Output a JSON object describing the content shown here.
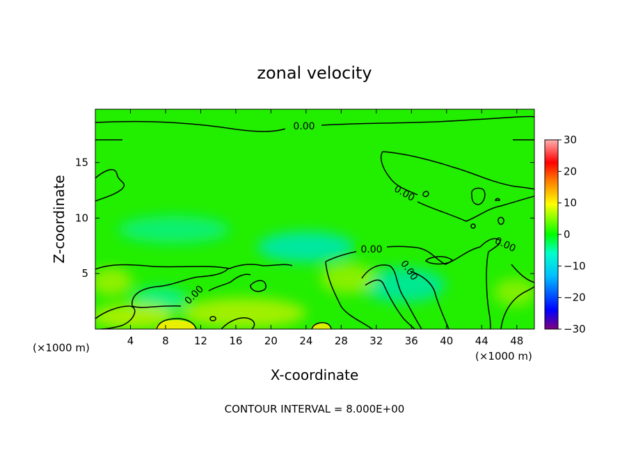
{
  "chart_data": {
    "type": "heatmap",
    "title": "zonal velocity",
    "xlabel": "X-coordinate",
    "ylabel": "Z-coordinate",
    "x_unit": "(×1000 m)",
    "x_unit_right": "(×1000 m)",
    "xlim": [
      0,
      50
    ],
    "ylim": [
      0,
      19.8
    ],
    "x_ticks": [
      4,
      8,
      12,
      16,
      20,
      24,
      28,
      32,
      36,
      40,
      44,
      48
    ],
    "x_tick_labels": [
      "4",
      "8",
      "12",
      "16",
      "20",
      "24",
      "28",
      "32",
      "36",
      "40",
      "44",
      "48"
    ],
    "y_ticks": [
      5,
      10,
      15
    ],
    "y_tick_labels": [
      "5",
      "10",
      "15"
    ],
    "colorbar": {
      "min": -30,
      "max": 30,
      "ticks": [
        30,
        20,
        10,
        0,
        -10,
        -20,
        -30
      ],
      "tick_labels": [
        "30",
        "20",
        "10",
        "0",
        "−10",
        "−20",
        "−30"
      ],
      "colors": [
        "#800080",
        "#0000ff",
        "#00bfff",
        "#00ffcc",
        "#00ff00",
        "#ffff00",
        "#ff8000",
        "#ff0000",
        "#ffb0b0"
      ]
    },
    "contour_levels": [
      0.0
    ],
    "contour_labels": [
      "0.00",
      "0.00",
      "0.00",
      "0.00",
      "0.00",
      "0.00"
    ],
    "contour_interval_note": "CONTOUR INTERVAL = 8.000E+00",
    "grid": false
  }
}
